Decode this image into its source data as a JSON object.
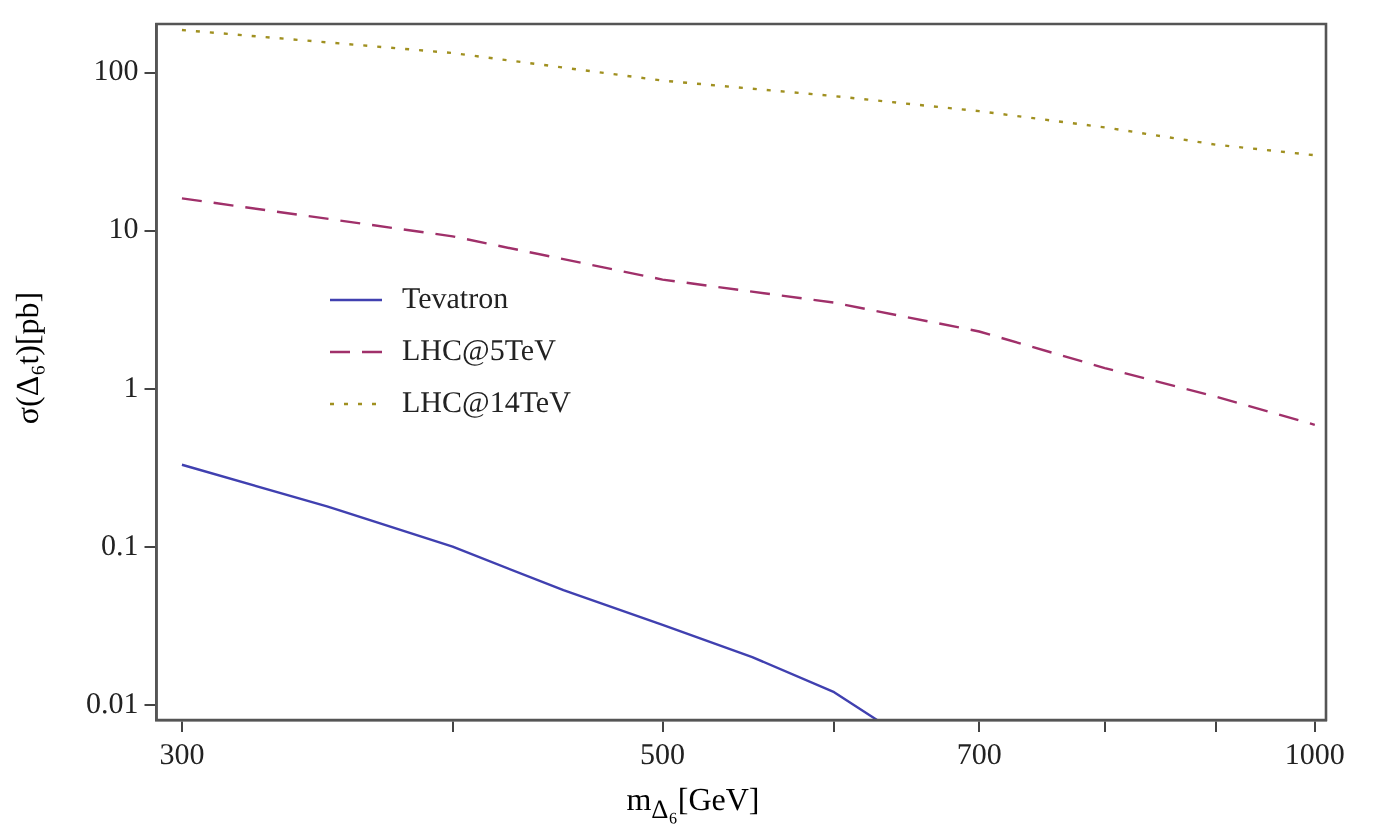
{
  "chart_data": {
    "type": "line",
    "xlabel": "m$_{Δ₆}$[GeV]",
    "ylabel": "σ(Δ₆t)[pb]",
    "log": "xy",
    "marker": "none",
    "grid": false,
    "legend": "left",
    "xlim": [
      292,
      1012
    ],
    "xticks": [
      300,
      {
        "value": 400,
        "label": null
      },
      500,
      {
        "value": 600,
        "label": null
      },
      700,
      {
        "value": 800,
        "label": null
      },
      {
        "value": 900,
        "label": null
      },
      1000
    ],
    "ylim": [
      0.008,
      203
    ],
    "yticks": [
      {
        "value": 0.01,
        "label": "0.01"
      },
      {
        "value": 0.1,
        "label": "0.1"
      },
      1,
      10,
      100
    ],
    "series": [
      {
        "name": "Tevatron",
        "color": "#4040b0",
        "line_style": "solid",
        "x": [
          300,
          350,
          400,
          450,
          500,
          550,
          600,
          628
        ],
        "values": [
          0.33,
          0.18,
          0.1,
          0.053,
          0.032,
          0.02,
          0.012,
          0.008
        ]
      },
      {
        "name": "LHC@5TeV",
        "color": "#a0306a",
        "line_style": "dashed",
        "x": [
          300,
          400,
          500,
          600,
          700,
          800,
          900,
          1000
        ],
        "values": [
          16,
          9.2,
          4.9,
          3.5,
          2.3,
          1.35,
          0.89,
          0.59
        ]
      },
      {
        "name": "LHC@14TeV",
        "color": "#a09020",
        "line_style": "dotted",
        "x": [
          300,
          400,
          500,
          600,
          700,
          800,
          900,
          1000
        ],
        "values": [
          186,
          133,
          89,
          71,
          57,
          45,
          35,
          30
        ]
      }
    ]
  }
}
